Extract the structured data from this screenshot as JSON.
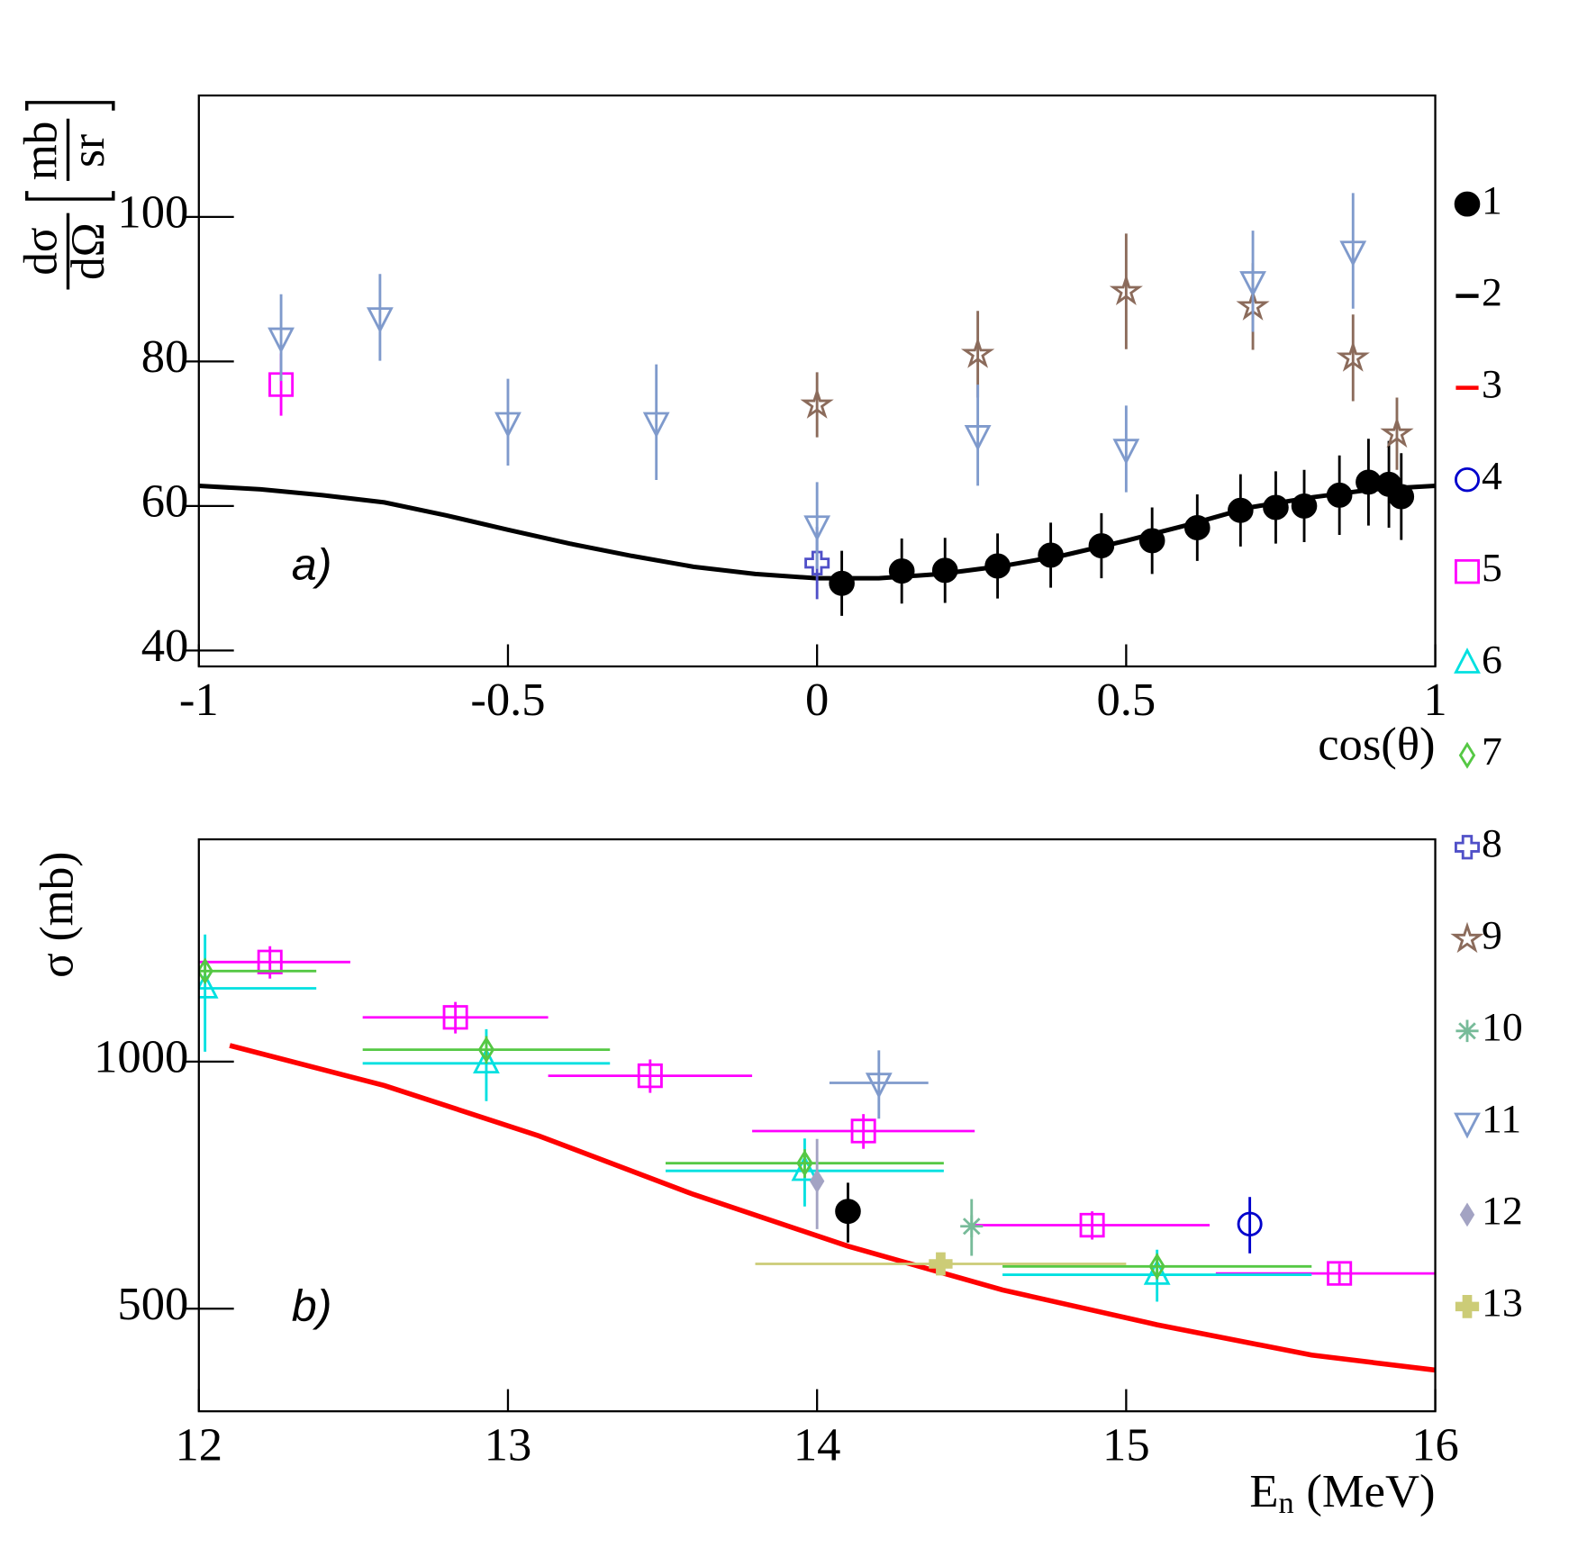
{
  "legend": [
    {
      "name": "1",
      "color": "#000000",
      "marker": "circle-filled"
    },
    {
      "name": "2",
      "color": "#000000",
      "marker": "line"
    },
    {
      "name": "3",
      "color": "#ff0000",
      "marker": "line"
    },
    {
      "name": "4",
      "color": "#0000cc",
      "marker": "circle"
    },
    {
      "name": "5",
      "color": "#ff00ff",
      "marker": "square"
    },
    {
      "name": "6",
      "color": "#00e0e0",
      "marker": "triangle-up"
    },
    {
      "name": "7",
      "color": "#55c844",
      "marker": "diamond"
    },
    {
      "name": "8",
      "color": "#5050c8",
      "marker": "cross"
    },
    {
      "name": "9",
      "color": "#8b6b5b",
      "marker": "star"
    },
    {
      "name": "10",
      "color": "#77bb99",
      "marker": "asterisk"
    },
    {
      "name": "11",
      "color": "#7f9acc",
      "marker": "triangle-down"
    },
    {
      "name": "12",
      "color": "#a3a3c3",
      "marker": "diamond-filled"
    },
    {
      "name": "13",
      "color": "#cccc77",
      "marker": "cross-filled"
    }
  ],
  "chart_data": [
    {
      "type": "scatter",
      "label": "a)",
      "x_label": "cos(θ)",
      "y_label": {
        "numerator": "dσ",
        "denominator": "dΩ",
        "unit_numerator": "mb",
        "unit_denominator": "sr"
      },
      "xlim": [
        -1,
        1
      ],
      "ylim": [
        37.8,
        116.8
      ],
      "xticks": [
        -1,
        -0.5,
        0,
        0.5,
        1
      ],
      "yticks": [
        40,
        60,
        80,
        100
      ],
      "series": [
        {
          "name": "1",
          "x": [
            0.04,
            0.137,
            0.207,
            0.292,
            0.378,
            0.46,
            0.542,
            0.615,
            0.685,
            0.742,
            0.788,
            0.845,
            0.892,
            0.925,
            0.945
          ],
          "values": [
            49.3,
            51.0,
            51.1,
            51.7,
            53.2,
            54.5,
            55.2,
            57.0,
            59.4,
            59.8,
            60.0,
            61.5,
            63.3,
            63.0,
            61.3
          ],
          "errors": [
            4.5,
            4.5,
            4.5,
            4.5,
            4.5,
            4.5,
            4.6,
            4.6,
            5,
            5,
            5,
            5.5,
            6,
            6,
            6
          ]
        },
        {
          "name": "2",
          "x": [
            -1,
            -0.9,
            -0.8,
            -0.7,
            -0.6,
            -0.5,
            -0.4,
            -0.3,
            -0.2,
            -0.1,
            0,
            0.1,
            0.2,
            0.3,
            0.4,
            0.5,
            0.6,
            0.7,
            0.8,
            0.9,
            1
          ],
          "values": [
            62.8,
            62.3,
            61.5,
            60.5,
            58.7,
            56.7,
            54.8,
            53.1,
            51.6,
            50.6,
            50.0,
            50.0,
            50.6,
            51.7,
            53.2,
            55.2,
            57.4,
            59.8,
            61.2,
            62.3,
            62.8
          ]
        },
        {
          "name": "5",
          "x": [
            -0.867
          ],
          "values": [
            76.8
          ],
          "errors": [
            4.3
          ]
        },
        {
          "name": "8",
          "x": [
            0
          ],
          "values": [
            52.1
          ],
          "errors": [
            5
          ]
        },
        {
          "name": "9",
          "x": [
            0,
            0.26,
            0.5,
            0.705,
            0.867,
            0.938
          ],
          "values": [
            74.0,
            81.0,
            89.7,
            87.6,
            80.5,
            70.0
          ],
          "errors": [
            4.5,
            6,
            8,
            6,
            6,
            5
          ]
        },
        {
          "name": "11",
          "x": [
            -0.867,
            -0.707,
            -0.5,
            -0.26,
            0,
            0.26,
            0.5,
            0.705,
            0.867
          ],
          "values": [
            83.3,
            86.1,
            71.6,
            71.6,
            57.3,
            69.8,
            67.9,
            91.1,
            95.3
          ],
          "errors": [
            6,
            6,
            6,
            8,
            6,
            7,
            6,
            7,
            8
          ]
        }
      ]
    },
    {
      "type": "scatter",
      "label": "b)",
      "x_label": {
        "symbol": "E",
        "subscript": "n",
        "unit": "(MeV)"
      },
      "y_label": "σ (mb)",
      "xlim": [
        12,
        16
      ],
      "ylim": [
        375,
        1865
      ],
      "log_y": true,
      "xticks": [
        12,
        13,
        14,
        15,
        16
      ],
      "yticks": [
        500,
        1000
      ],
      "series": [
        {
          "name": "3",
          "x": [
            12.1,
            12.6,
            13.1,
            13.6,
            14.1,
            14.6,
            15.1,
            15.6,
            16
          ],
          "values": [
            1046,
            935,
            812,
            689,
            596,
            527,
            478,
            439,
            421
          ]
        },
        {
          "name": "5",
          "x": [
            12.23,
            12.83,
            13.46,
            14.15,
            14.89,
            15.69
          ],
          "values": [
            1322,
            1132,
            961,
            823,
            632,
            552
          ],
          "errors": [
            60,
            50,
            45,
            40,
            25,
            15
          ],
          "x_errors": [
            0.26,
            0.3,
            0.33,
            0.36,
            0.38,
            0.4
          ]
        },
        {
          "name": "6",
          "x": [
            12.02,
            12.93,
            13.96,
            15.1
          ],
          "values": [
            1228,
            995,
            736,
            550
          ],
          "errors": [
            200,
            100,
            70,
            40
          ],
          "x_errors": [
            0.36,
            0.4,
            0.45,
            0.5
          ]
        },
        {
          "name": "7",
          "x": [
            12.02,
            12.93,
            13.96,
            15.1
          ],
          "values": [
            1289,
            1034,
            752,
            563
          ],
          "errors": [
            40,
            40,
            30,
            20
          ],
          "x_errors": [
            0.36,
            0.4,
            0.45,
            0.5
          ]
        },
        {
          "name": "1",
          "x": [
            14.1
          ],
          "values": [
            657
          ],
          "errors": [
            55
          ]
        },
        {
          "name": "4",
          "x": [
            15.4
          ],
          "values": [
            634
          ],
          "errors": [
            50
          ]
        },
        {
          "name": "10",
          "x": [
            14.5
          ],
          "values": [
            630
          ],
          "errors": [
            50
          ]
        },
        {
          "name": "11",
          "x": [
            14.2
          ],
          "values": [
            942
          ],
          "errors": [
            90
          ],
          "x_errors": [
            0.16
          ]
        },
        {
          "name": "12",
          "x": [
            14.0
          ],
          "values": [
            715
          ],
          "errors": [
            90
          ]
        },
        {
          "name": "13",
          "x": [
            14.4
          ],
          "values": [
            567
          ],
          "errors": [
            10
          ],
          "x_errors": [
            0.6
          ]
        }
      ]
    }
  ]
}
